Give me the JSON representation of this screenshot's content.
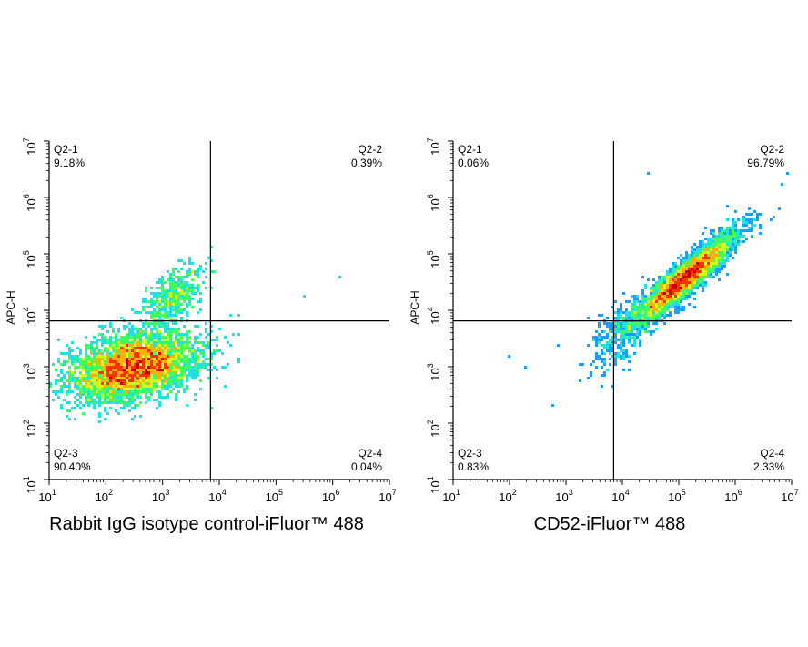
{
  "chart_data": [
    {
      "type": "scatter",
      "plot_kind": "flow cytometry density dot plot",
      "xlabel": "Rabbit IgG isotype control-iFluor™ 488",
      "ylabel": "APC-H",
      "x_scale": "log",
      "y_scale": "log",
      "xlim": [
        10,
        10000000
      ],
      "ylim": [
        10,
        10000000
      ],
      "tick_exponents": [
        1,
        2,
        3,
        4,
        5,
        6,
        7
      ],
      "tick_base": "10",
      "gate": {
        "x": 7000,
        "y": 6500
      },
      "quadrants": [
        {
          "name": "Q2-1",
          "percent": "9.18%",
          "corner": "top-left"
        },
        {
          "name": "Q2-2",
          "percent": "0.39%",
          "corner": "top-right"
        },
        {
          "name": "Q2-3",
          "percent": "90.40%",
          "corner": "bottom-left"
        },
        {
          "name": "Q2-4",
          "percent": "0.04%",
          "corner": "bottom-right"
        }
      ],
      "populations": [
        {
          "center": [
            300,
            1000
          ],
          "spread_decades": [
            0.55,
            0.3
          ],
          "correlation": 0.35,
          "share": 0.88
        },
        {
          "center": [
            1600,
            18000
          ],
          "spread_decades": [
            0.28,
            0.28
          ],
          "correlation": 0.55,
          "share": 0.09
        }
      ],
      "outliers": [
        [
          300000,
          17000
        ],
        [
          1400000,
          38000
        ]
      ],
      "density_colors": [
        "#1a1aff",
        "#19a0ff",
        "#20e0e0",
        "#40ff60",
        "#d0ff20",
        "#ffb000",
        "#ff3000",
        "#c00000"
      ]
    },
    {
      "type": "scatter",
      "plot_kind": "flow cytometry density dot plot",
      "xlabel": "CD52-iFluor™ 488",
      "ylabel": "APC-H",
      "x_scale": "log",
      "y_scale": "log",
      "xlim": [
        10,
        10000000
      ],
      "ylim": [
        10,
        10000000
      ],
      "tick_exponents": [
        1,
        2,
        3,
        4,
        5,
        6,
        7
      ],
      "tick_base": "10",
      "gate": {
        "x": 7000,
        "y": 6500
      },
      "quadrants": [
        {
          "name": "Q2-1",
          "percent": "0.06%",
          "corner": "top-left"
        },
        {
          "name": "Q2-2",
          "percent": "96.79%",
          "corner": "top-right"
        },
        {
          "name": "Q2-3",
          "percent": "0.83%",
          "corner": "bottom-left"
        },
        {
          "name": "Q2-4",
          "percent": "2.33%",
          "corner": "bottom-right"
        }
      ],
      "populations": [
        {
          "center": [
            120000,
            35000
          ],
          "spread_decades": [
            0.45,
            0.4
          ],
          "correlation": 0.92,
          "share": 0.93
        },
        {
          "center": [
            9000,
            3500
          ],
          "spread_decades": [
            0.3,
            0.35
          ],
          "correlation": 0.6,
          "share": 0.06
        }
      ],
      "outliers": [
        [
          30000,
          2800000
        ],
        [
          700000,
          700000
        ],
        [
          200,
          1000
        ],
        [
          100,
          1500
        ],
        [
          600,
          200
        ]
      ],
      "density_colors": [
        "#1a1aff",
        "#19a0ff",
        "#20e0e0",
        "#40ff60",
        "#d0ff20",
        "#ffb000",
        "#ff3000",
        "#c00000"
      ]
    }
  ]
}
